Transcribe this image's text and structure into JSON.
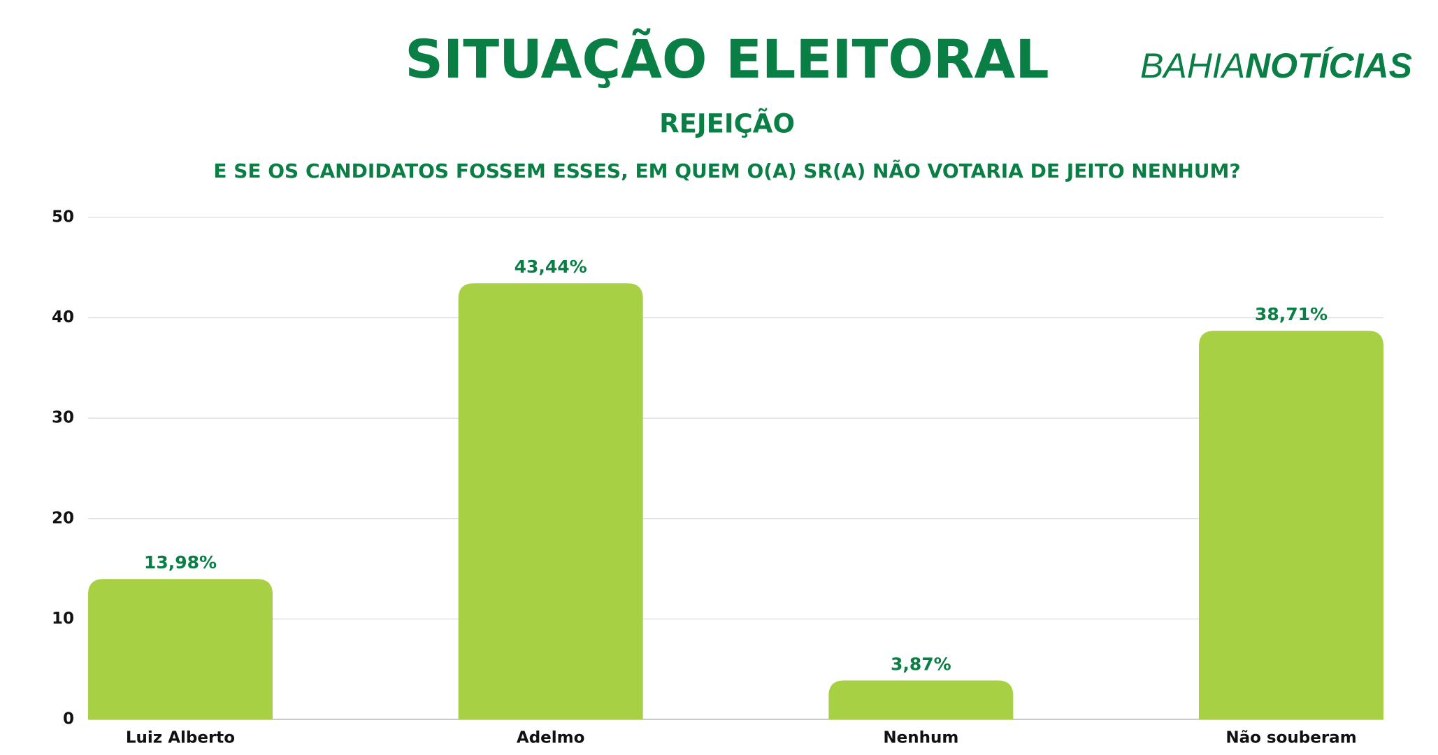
{
  "chart_data": {
    "type": "bar",
    "title": "SITUAÇÃO ELEITORAL",
    "subtitle": "REJEIÇÃO",
    "question": "E SE OS CANDIDATOS FOSSEM ESSES, EM QUEM O(A) SR(A) NÃO VOTARIA DE JEITO NENHUM?",
    "logo": {
      "light": "BAHIA",
      "bold": "NOTÍCIAS"
    },
    "categories": [
      "Luiz Alberto",
      "Adelmo",
      "Nenhum",
      "Não souberam"
    ],
    "values": [
      13.98,
      43.44,
      3.87,
      38.71
    ],
    "value_labels": [
      "13,98%",
      "43,44%",
      "3,87%",
      "38,71%"
    ],
    "color": "#a8d045",
    "ylim": [
      0,
      50
    ],
    "yticks": [
      0,
      10,
      20,
      30,
      40,
      50
    ],
    "grid": true
  }
}
